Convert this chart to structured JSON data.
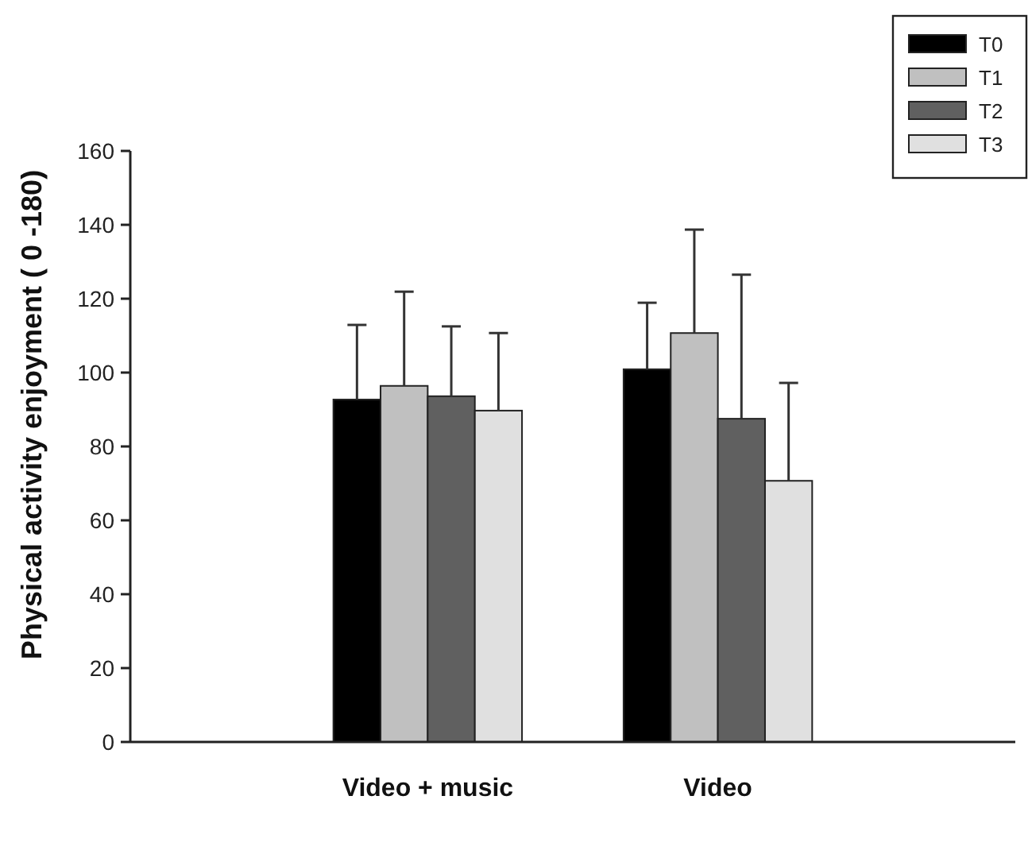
{
  "chart_data": {
    "type": "bar",
    "ylabel": "Physical activity enjoyment ( 0 -180)",
    "categories": [
      "Video + music",
      "Video"
    ],
    "series": [
      {
        "name": "T0",
        "color": "#000000",
        "values": [
          92.7,
          100.9
        ],
        "errors": [
          [
            92.7,
            112.9
          ],
          [
            100.9,
            118.9
          ]
        ]
      },
      {
        "name": "T1",
        "color": "#c0c0c0",
        "values": [
          96.4,
          110.7
        ],
        "errors": [
          [
            96.4,
            121.9
          ],
          [
            110.7,
            138.7
          ]
        ]
      },
      {
        "name": "T2",
        "color": "#606060",
        "values": [
          93.6,
          87.5
        ],
        "errors": [
          [
            93.6,
            112.5
          ],
          [
            87.5,
            126.5
          ]
        ]
      },
      {
        "name": "T3",
        "color": "#e0e0e0",
        "values": [
          89.7,
          70.7
        ],
        "errors": [
          [
            89.7,
            110.7
          ],
          [
            70.7,
            97.2
          ]
        ]
      }
    ],
    "ylim": [
      0,
      160
    ],
    "yticks": [
      0,
      20,
      40,
      60,
      80,
      100,
      120,
      140,
      160
    ],
    "grid": false,
    "legend": "top right"
  }
}
